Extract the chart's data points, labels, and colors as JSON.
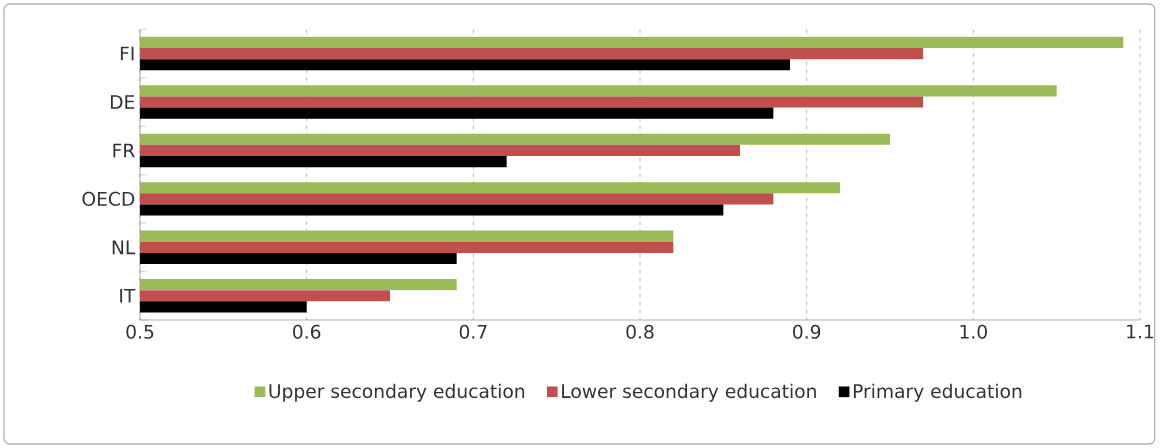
{
  "chart_data": {
    "type": "bar",
    "orientation": "horizontal",
    "categories": [
      "FI",
      "DE",
      "FR",
      "OECD",
      "NL",
      "IT"
    ],
    "series": [
      {
        "name": "Upper secondary education",
        "color": "#9bbb59",
        "values": [
          1.09,
          1.05,
          0.95,
          0.92,
          0.82,
          0.69
        ]
      },
      {
        "name": "Lower secondary education",
        "color": "#c0504d",
        "values": [
          0.97,
          0.97,
          0.86,
          0.88,
          0.82,
          0.65
        ]
      },
      {
        "name": "Primary education",
        "color": "#000000",
        "values": [
          0.89,
          0.88,
          0.72,
          0.85,
          0.69,
          0.6
        ]
      }
    ],
    "xlim": [
      0.5,
      1.1
    ],
    "xticks": [
      {
        "value": 0.5,
        "label": "0.5"
      },
      {
        "value": 0.6,
        "label": "0.6"
      },
      {
        "value": 0.7,
        "label": "0.7"
      },
      {
        "value": 0.8,
        "label": "0.8"
      },
      {
        "value": 0.9,
        "label": "0.9"
      },
      {
        "value": 1.0,
        "label": "1.0"
      },
      {
        "value": 1.1,
        "label": "1.1"
      }
    ],
    "grid": "x",
    "legend": "bottom"
  }
}
